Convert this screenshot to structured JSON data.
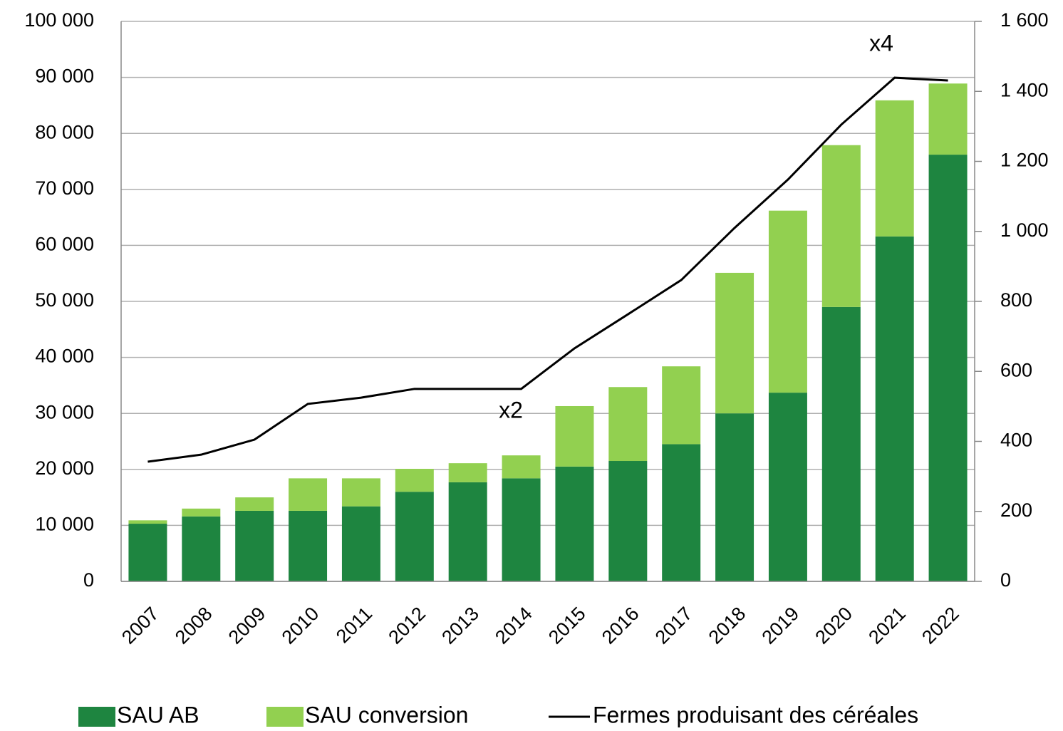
{
  "chart_data": {
    "type": "bar",
    "categories": [
      "2007",
      "2008",
      "2009",
      "2010",
      "2011",
      "2012",
      "2013",
      "2014",
      "2015",
      "2016",
      "2017",
      "2018",
      "2019",
      "2020",
      "2021",
      "2022"
    ],
    "stacked": true,
    "series": [
      {
        "name": "SAU AB",
        "color": "#1e8540",
        "values": [
          10300,
          11600,
          12600,
          12600,
          13400,
          16000,
          17700,
          18400,
          20500,
          21500,
          24500,
          30000,
          33700,
          49000,
          61600,
          76200
        ]
      },
      {
        "name": "SAU conversion",
        "color": "#92d050",
        "values": [
          600,
          1400,
          2400,
          5800,
          5000,
          4100,
          3400,
          4100,
          10800,
          13200,
          13900,
          25100,
          32500,
          28900,
          24300,
          12700
        ]
      },
      {
        "name": "Fermes produisant des céréales",
        "type": "line",
        "axis": "y2",
        "color": "#000000",
        "values": [
          342,
          362,
          405,
          507,
          525,
          550,
          550,
          550,
          666,
          763,
          861,
          1010,
          1148,
          1305,
          1439,
          1431
        ]
      }
    ],
    "ylim": [
      0,
      100000
    ],
    "yticks": [
      0,
      {
        "value": 10000,
        "label": "10 000"
      },
      {
        "value": 20000,
        "label": "20 000"
      },
      {
        "value": 30000,
        "label": "30 000"
      },
      {
        "value": 40000,
        "label": "40 000"
      },
      {
        "value": 50000,
        "label": "50 000"
      },
      {
        "value": 60000,
        "label": "60 000"
      },
      {
        "value": 70000,
        "label": "70 000"
      },
      {
        "value": 80000,
        "label": "80 000"
      },
      {
        "value": 90000,
        "label": "90 000"
      },
      {
        "value": 100000,
        "label": "100 000"
      }
    ],
    "y2lim": [
      0,
      1600
    ],
    "y2ticks": [
      0,
      200,
      400,
      600,
      800,
      {
        "value": 1000,
        "label": "1 000"
      },
      {
        "value": 1200,
        "label": "1 200"
      },
      {
        "value": 1400,
        "label": "1 400"
      },
      {
        "value": 1600,
        "label": "1 600"
      }
    ],
    "grid": true,
    "legend": "bottom",
    "annotations": [
      {
        "text": "x2"
      },
      {
        "text": "x4"
      }
    ]
  }
}
